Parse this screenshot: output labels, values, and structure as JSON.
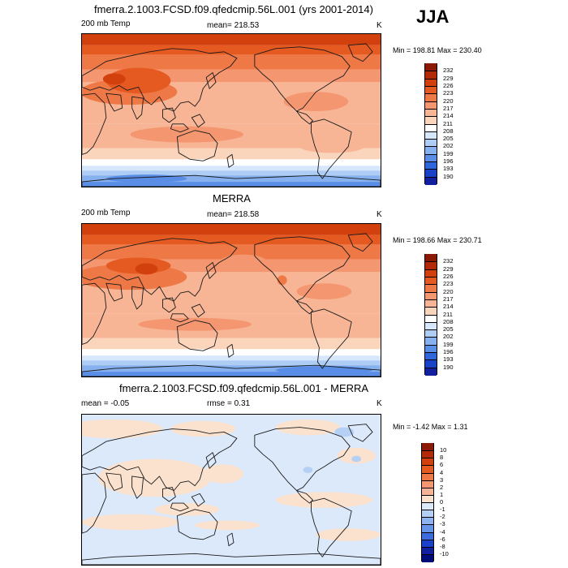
{
  "season": "JJA",
  "panels": [
    {
      "title": "fmerra.2.1003.FCSD.f09.qfedcmip.56L.001 (yrs 2001-2014)",
      "left_label": "200 mb Temp",
      "center_label": "mean= 218.53",
      "units": "K",
      "minmax": "Min = 198.81 Max = 230.40",
      "colorbar_labels": [
        "232",
        "229",
        "226",
        "223",
        "220",
        "217",
        "214",
        "211",
        "208",
        "205",
        "202",
        "199",
        "196",
        "193",
        "190"
      ]
    },
    {
      "title": "MERRA",
      "left_label": "200 mb Temp",
      "center_label": "mean= 218.58",
      "units": "K",
      "minmax": "Min = 198.66 Max = 230.71",
      "colorbar_labels": [
        "232",
        "229",
        "226",
        "223",
        "220",
        "217",
        "214",
        "211",
        "208",
        "205",
        "202",
        "199",
        "196",
        "193",
        "190"
      ]
    },
    {
      "title": "fmerra.2.1003.FCSD.f09.qfedcmip.56L.001 - MERRA",
      "left_label": "mean =  -0.05",
      "center_label": "rmse =   0.31",
      "units": "K",
      "minmax": "Min =  -1.42 Max =   1.31",
      "colorbar_labels": [
        "10",
        "8",
        "6",
        "4",
        "3",
        "2",
        "1",
        "0",
        "-1",
        "-2",
        "-3",
        "-4",
        "-6",
        "-8",
        "-10"
      ]
    }
  ],
  "colors": {
    "temp_scale": [
      "#8b1a05",
      "#b22a08",
      "#d2400e",
      "#e55a20",
      "#ee7846",
      "#f49670",
      "#f7b595",
      "#fbd4bc",
      "#ffffff",
      "#d6e6fb",
      "#aecdf5",
      "#86b0ee",
      "#5a8ee6",
      "#2f66dc",
      "#1a42c8",
      "#1220a0",
      "#000a78"
    ],
    "diff_scale": [
      "#8b1a05",
      "#b22a08",
      "#d2400e",
      "#e55a20",
      "#ee7846",
      "#f49670",
      "#f7b595",
      "#fbe2cf",
      "#dce9fb",
      "#b6d0f5",
      "#8db4ee",
      "#6694e6",
      "#3c6ddc",
      "#1a42c8",
      "#1220a0",
      "#000a78"
    ]
  }
}
